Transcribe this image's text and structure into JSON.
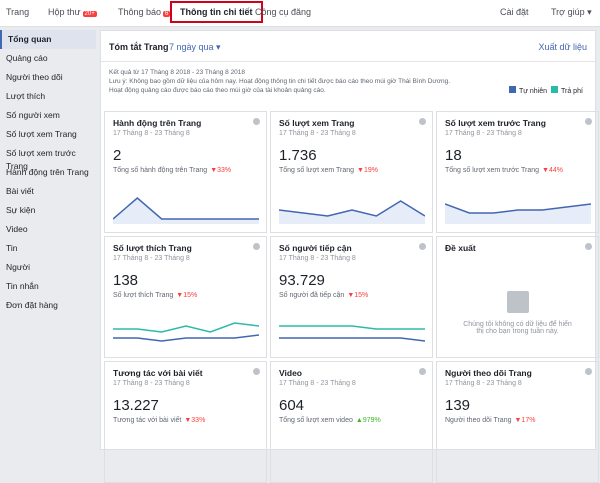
{
  "nav": {
    "items": [
      {
        "label": "Trang"
      },
      {
        "label": "Hộp thư",
        "badge": "20+"
      },
      {
        "label": "Thông báo",
        "badge": "6"
      },
      {
        "label": "Thông tin chi tiết"
      },
      {
        "label": "Công cụ đăng"
      }
    ],
    "active": 3,
    "right": [
      "Cài đặt",
      "Trợ giúp"
    ]
  },
  "sidebar": {
    "items": [
      "Tổng quan",
      "Quảng cáo",
      "Người theo dõi",
      "Lượt thích",
      "Số người xem",
      "Số lượt xem Trang",
      "Số lượt xem trước Trang",
      "Hành động trên Trang",
      "Bài viết",
      "Sự kiện",
      "Video",
      "Tin",
      "Người",
      "Tin nhắn",
      "Đơn đặt hàng"
    ],
    "active": 0
  },
  "summary": {
    "title": "Tóm tắt Trang",
    "period": "7 ngày qua",
    "export": "Xuất dữ liệu",
    "notes": [
      "Kết quả từ 17 Tháng 8 2018 - 23 Tháng 8 2018",
      "Lưu ý: Không bao gồm dữ liệu của hôm nay. Hoạt động thông tin chi tiết được báo cáo theo múi giờ Thái Bình Dương.",
      "Hoạt động quảng cáo được báo cáo theo múi giờ của tài khoản quảng cáo."
    ],
    "legend": [
      {
        "name": "Tự nhiên",
        "color": "#4267b2"
      },
      {
        "name": "Trả phí",
        "color": "#2abba7"
      }
    ]
  },
  "cards": [
    {
      "title": "Hành động trên Trang",
      "date": "17 Tháng 8 - 23 Tháng 8",
      "value": "2",
      "label": "Tổng số hành động trên Trang",
      "change": "33%",
      "trend": "down",
      "chart": {
        "ylim": [
          0,
          10
        ],
        "series": [
          {
            "color": "#4267b2",
            "values": [
              1,
              8,
              1,
              1,
              1,
              1,
              1
            ]
          }
        ]
      }
    },
    {
      "title": "Số lượt xem Trang",
      "date": "17 Tháng 8 - 23 Tháng 8",
      "value": "1.736",
      "label": "Tổng số lượt xem Trang",
      "change": "19%",
      "trend": "down",
      "chart": {
        "ylim": [
          0,
          10
        ],
        "series": [
          {
            "color": "#4267b2",
            "values": [
              4,
              3,
              2,
              4,
              2,
              7,
              2
            ]
          }
        ]
      }
    },
    {
      "title": "Số lượt xem trước Trang",
      "date": "17 Tháng 8 - 23 Tháng 8",
      "value": "18",
      "label": "Tổng số lượt xem trước Trang",
      "change": "44%",
      "trend": "down",
      "chart": {
        "ylim": [
          0,
          10
        ],
        "series": [
          {
            "color": "#4267b2",
            "values": [
              6,
              3,
              3,
              4,
              4,
              5,
              6
            ]
          }
        ]
      }
    },
    {
      "title": "Số lượt thích Trang",
      "date": "17 Tháng 8 - 23 Tháng 8",
      "value": "138",
      "label": "Số lượt thích Trang",
      "change": "15%",
      "trend": "down",
      "chart": {
        "ylim": [
          0,
          10
        ],
        "series": [
          {
            "color": "#2abba7",
            "values": [
              6,
              6,
              5,
              7,
              5,
              8,
              7
            ]
          },
          {
            "color": "#4267b2",
            "values": [
              3,
              3,
              2,
              3,
              3,
              3,
              4
            ]
          }
        ]
      }
    },
    {
      "title": "Số người tiếp cận",
      "date": "17 Tháng 8 - 23 Tháng 8",
      "value": "93.729",
      "label": "Số người đã tiếp cận",
      "change": "15%",
      "trend": "down",
      "chart": {
        "ylim": [
          0,
          10
        ],
        "series": [
          {
            "color": "#2abba7",
            "values": [
              7,
              7,
              7,
              7,
              6,
              6,
              6
            ]
          },
          {
            "color": "#4267b2",
            "values": [
              3,
              3,
              3,
              3,
              3,
              3,
              2
            ]
          }
        ]
      }
    },
    {
      "title": "Đề xuất",
      "message": "Chúng tôi không có dữ liệu để hiển thị cho bạn trong tuần này."
    },
    {
      "title": "Tương tác với bài viết",
      "date": "17 Tháng 8 - 23 Tháng 8",
      "value": "13.227",
      "label": "Tương tác với bài viết",
      "change": "33%",
      "trend": "down"
    },
    {
      "title": "Video",
      "date": "17 Tháng 8 - 23 Tháng 8",
      "value": "604",
      "label": "Tổng số lượt xem video",
      "change": "979%",
      "trend": "up"
    },
    {
      "title": "Người theo dõi Trang",
      "date": "17 Tháng 8 - 23 Tháng 8",
      "value": "139",
      "label": "Người theo dõi Trang",
      "change": "17%",
      "trend": "down"
    }
  ]
}
